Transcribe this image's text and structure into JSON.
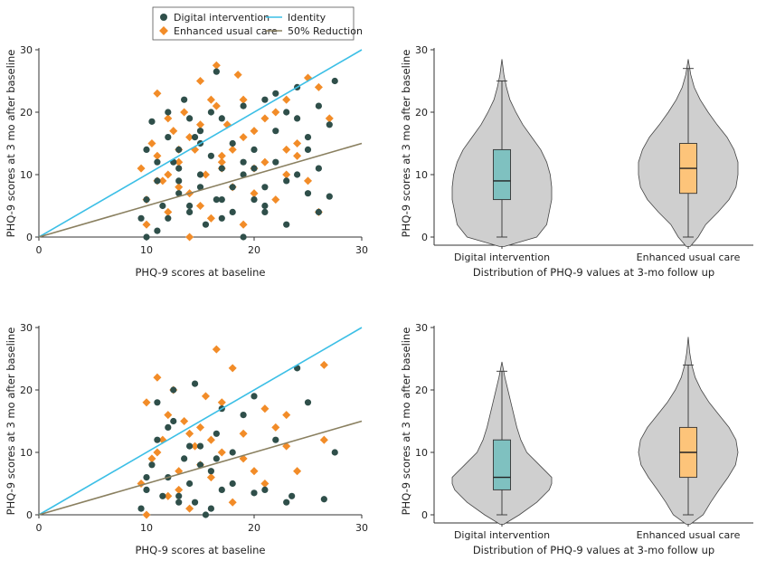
{
  "legend": {
    "digital": "Digital intervention",
    "enhanced": "Enhanced usual care",
    "identity": "Identity",
    "reduction": "50% Reduction"
  },
  "colors": {
    "digital": "#2f4f4a",
    "enhanced": "#f28c28",
    "identity": "#3cbfe6",
    "reduction": "#8a8060",
    "violin_fill": "#cfcfcf",
    "box_digital": "#7fc1c0",
    "box_enhanced": "#fdc47a"
  },
  "chart_data": [
    {
      "type": "scatter",
      "panel": "top-left",
      "xlabel": "PHQ-9 scores at baseline",
      "ylabel": "PHQ-9 scores at 3 mo after baseline",
      "xlim": [
        0,
        30
      ],
      "ylim": [
        0,
        30
      ],
      "xticks": [
        0,
        10,
        20,
        30
      ],
      "yticks": [
        0,
        10,
        20,
        30
      ],
      "lines": [
        {
          "name": "Identity",
          "x": [
            0,
            30
          ],
          "y": [
            0,
            30
          ]
        },
        {
          "name": "50% Reduction",
          "x": [
            0,
            30
          ],
          "y": [
            0,
            15
          ]
        }
      ],
      "series": [
        {
          "name": "Digital intervention",
          "marker": "circle",
          "x": [
            9.5,
            10,
            10.5,
            11,
            11.5,
            12,
            12.5,
            13,
            13.5,
            14,
            14.5,
            15,
            15.5,
            16,
            16.5,
            17,
            18,
            19,
            20,
            21,
            22,
            23,
            24,
            25,
            26,
            27,
            27.5,
            10,
            11,
            12,
            13,
            14,
            15,
            16,
            17,
            18,
            19,
            20,
            21,
            22,
            23,
            24,
            25,
            26,
            13,
            15,
            17,
            19,
            21,
            23,
            16.5,
            18,
            20,
            22,
            24,
            12,
            14,
            10,
            11,
            13,
            15,
            17,
            19,
            21,
            25,
            26,
            27
          ],
          "y": [
            3,
            14,
            18.5,
            9,
            5,
            20,
            12,
            7,
            22,
            4,
            16,
            10,
            2,
            13,
            6,
            19,
            8,
            0,
            11,
            4,
            17,
            2,
            24,
            7,
            21,
            18,
            25,
            0,
            1,
            16,
            14,
            5,
            8,
            20,
            3,
            15,
            10,
            6,
            22,
            12,
            9,
            19,
            14,
            4,
            11,
            17,
            6,
            12,
            8,
            20,
            26.5,
            4,
            14,
            23,
            10,
            3,
            19,
            6,
            12,
            9,
            15,
            11,
            21,
            5,
            16,
            11,
            6.5
          ]
        },
        {
          "name": "Enhanced usual care",
          "marker": "diamond",
          "x": [
            9.5,
            10,
            10.5,
            11,
            11.5,
            12,
            12.5,
            13,
            13.5,
            14,
            14.5,
            15,
            15.5,
            16,
            16.5,
            17,
            17.5,
            18,
            18.5,
            19,
            20,
            21,
            22,
            23,
            24,
            25,
            26,
            27,
            10,
            11,
            12,
            13,
            14,
            15,
            16,
            17,
            18,
            19,
            20,
            21,
            22,
            23,
            24,
            25,
            26,
            11,
            13,
            15,
            16.5,
            19,
            14,
            17,
            12,
            20,
            23
          ],
          "y": [
            11,
            6,
            15,
            23,
            9,
            4,
            17,
            12,
            20,
            7,
            14,
            25,
            10,
            3,
            21,
            13,
            18,
            8,
            26,
            16,
            11,
            19,
            6,
            22,
            15,
            9,
            24,
            19,
            2,
            13,
            19,
            8,
            16,
            5,
            22,
            11,
            14,
            2,
            17,
            12,
            20,
            10,
            13,
            25.5,
            4,
            9,
            14,
            18,
            27.5,
            22,
            0,
            12,
            10,
            7,
            14
          ]
        }
      ]
    },
    {
      "type": "violin",
      "panel": "top-right",
      "xlabel": "Distribution of PHQ-9 values at 3-mo follow up",
      "ylabel": "PHQ-9 scores at 3 mo after baseline",
      "ylim": [
        0,
        30
      ],
      "yticks": [
        0,
        10,
        20,
        30
      ],
      "categories": [
        "Digital intervention",
        "Enhanced usual care"
      ],
      "violins": [
        {
          "name": "Digital intervention",
          "min": 0,
          "q1": 6,
          "median": 9,
          "q3": 14,
          "max": 25,
          "tail_max": 28.5,
          "density": [
            [
              -1.5,
              0.05
            ],
            [
              0,
              0.7
            ],
            [
              2,
              0.9
            ],
            [
              4,
              0.95
            ],
            [
              6,
              1.0
            ],
            [
              8,
              1.0
            ],
            [
              10,
              0.97
            ],
            [
              12,
              0.9
            ],
            [
              14,
              0.78
            ],
            [
              16,
              0.6
            ],
            [
              18,
              0.42
            ],
            [
              20,
              0.28
            ],
            [
              22,
              0.16
            ],
            [
              24,
              0.09
            ],
            [
              26,
              0.04
            ],
            [
              28.5,
              0.0
            ]
          ]
        },
        {
          "name": "Enhanced usual care",
          "min": 0,
          "q1": 7,
          "median": 11,
          "q3": 15,
          "max": 27,
          "tail_max": 28.5,
          "density": [
            [
              -1.5,
              0.04
            ],
            [
              0,
              0.2
            ],
            [
              2,
              0.35
            ],
            [
              4,
              0.6
            ],
            [
              6,
              0.82
            ],
            [
              8,
              0.96
            ],
            [
              10,
              1.0
            ],
            [
              12,
              1.0
            ],
            [
              14,
              0.92
            ],
            [
              16,
              0.78
            ],
            [
              18,
              0.58
            ],
            [
              20,
              0.4
            ],
            [
              22,
              0.24
            ],
            [
              24,
              0.12
            ],
            [
              26,
              0.05
            ],
            [
              28.5,
              0.0
            ]
          ]
        }
      ]
    },
    {
      "type": "scatter",
      "panel": "bottom-left",
      "xlabel": "PHQ-9 scores at baseline",
      "ylabel": "PHQ-9 scores at 3 mo after baseline",
      "xlim": [
        0,
        30
      ],
      "ylim": [
        0,
        30
      ],
      "xticks": [
        0,
        10,
        20,
        30
      ],
      "yticks": [
        0,
        10,
        20,
        30
      ],
      "lines": [
        {
          "name": "Identity",
          "x": [
            0,
            30
          ],
          "y": [
            0,
            30
          ]
        },
        {
          "name": "50% Reduction",
          "x": [
            0,
            30
          ],
          "y": [
            0,
            15
          ]
        }
      ],
      "series": [
        {
          "name": "Digital intervention",
          "marker": "circle",
          "x": [
            9.5,
            10,
            10.5,
            11,
            11.5,
            12,
            12.5,
            13,
            13.5,
            14,
            14.5,
            15,
            15.5,
            16,
            16.5,
            17,
            18,
            19,
            20,
            21,
            22,
            23,
            24,
            25,
            26.5,
            27.5,
            10,
            11,
            12,
            13,
            14,
            15,
            16,
            17,
            18,
            12.5,
            14.5,
            16.5,
            20,
            23.5
          ],
          "y": [
            1,
            4,
            8,
            12,
            3,
            6,
            15,
            2,
            9,
            5,
            21,
            11,
            0,
            7,
            13,
            4,
            10,
            16,
            19,
            4,
            12,
            2,
            23.5,
            18,
            2.5,
            10,
            6,
            18,
            14,
            3,
            11,
            8,
            1,
            17,
            5,
            20,
            2,
            9,
            3.5,
            3
          ]
        },
        {
          "name": "Enhanced usual care",
          "marker": "diamond",
          "x": [
            9.5,
            10,
            10.5,
            11,
            11.5,
            12,
            12.5,
            13,
            13.5,
            14,
            14.5,
            15,
            15.5,
            16,
            16.5,
            17,
            18,
            19,
            20,
            21,
            22,
            23,
            24,
            26.5,
            10,
            11,
            12,
            13,
            14,
            15,
            16,
            17,
            18,
            19,
            21,
            23,
            26.5
          ],
          "y": [
            5,
            18,
            9,
            22,
            12,
            3,
            20,
            7,
            15,
            1,
            11,
            14,
            19,
            6,
            26.5,
            10,
            23.5,
            13,
            7,
            17,
            14,
            16,
            7,
            24,
            0,
            10,
            16,
            4,
            13,
            8,
            12,
            18,
            2,
            9,
            5,
            11,
            12
          ]
        }
      ]
    },
    {
      "type": "violin",
      "panel": "bottom-right",
      "xlabel": "Distribution of PHQ-9 values at 3-mo follow up",
      "ylabel": "PHQ-9 scores at 3 mo after baseline",
      "ylim": [
        0,
        30
      ],
      "yticks": [
        0,
        10,
        20,
        30
      ],
      "categories": [
        "Digital intervention",
        "Enhanced usual care"
      ],
      "violins": [
        {
          "name": "Digital intervention",
          "min": 0,
          "q1": 4,
          "median": 6,
          "q3": 12,
          "max": 23,
          "tail_max": 24.5,
          "density": [
            [
              -1.5,
              0.04
            ],
            [
              0,
              0.35
            ],
            [
              2,
              0.7
            ],
            [
              4,
              0.95
            ],
            [
              5,
              1.0
            ],
            [
              6,
              1.0
            ],
            [
              8,
              0.75
            ],
            [
              10,
              0.5
            ],
            [
              12,
              0.38
            ],
            [
              14,
              0.3
            ],
            [
              16,
              0.24
            ],
            [
              18,
              0.18
            ],
            [
              20,
              0.12
            ],
            [
              22,
              0.06
            ],
            [
              24.5,
              0.0
            ]
          ]
        },
        {
          "name": "Enhanced usual care",
          "min": 0,
          "q1": 6,
          "median": 10,
          "q3": 14,
          "max": 24,
          "tail_max": 28.5,
          "density": [
            [
              -1.5,
              0.04
            ],
            [
              0,
              0.3
            ],
            [
              2,
              0.45
            ],
            [
              4,
              0.62
            ],
            [
              6,
              0.8
            ],
            [
              8,
              0.95
            ],
            [
              10,
              1.0
            ],
            [
              12,
              0.96
            ],
            [
              14,
              0.82
            ],
            [
              16,
              0.62
            ],
            [
              18,
              0.42
            ],
            [
              20,
              0.26
            ],
            [
              22,
              0.14
            ],
            [
              24,
              0.07
            ],
            [
              26,
              0.03
            ],
            [
              28.5,
              0.0
            ]
          ]
        }
      ]
    }
  ]
}
